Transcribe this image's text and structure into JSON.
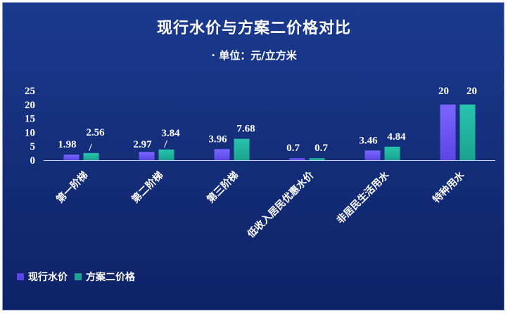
{
  "chart_data": {
    "type": "bar",
    "title": "现行水价与方案二价格对比",
    "subtitle": "· 单位：元/立方米",
    "categories": [
      "第一阶梯",
      "第二阶梯",
      "第三阶梯",
      "低收入居民优惠水价",
      "非居民生活用水",
      "特种用水"
    ],
    "series": [
      {
        "name": "现行水价",
        "values": [
          1.98,
          2.97,
          3.96,
          0.7,
          3.46,
          20
        ],
        "labels": [
          "1.98",
          "2.97",
          "3.96",
          "0.7",
          "3.46",
          "20"
        ],
        "color": "#5b45e6"
      },
      {
        "name": "方案二价格",
        "values": [
          2.56,
          3.84,
          7.68,
          0.7,
          4.84,
          20
        ],
        "labels": [
          "2.56",
          "3.84",
          "7.68",
          "0.7",
          "4.84",
          "20"
        ],
        "color": "#1aa390"
      }
    ],
    "yticks": [
      0,
      5,
      10,
      15,
      20,
      25
    ],
    "ylim": [
      0,
      25
    ],
    "grid": false,
    "legend_position": "bottom-left"
  }
}
